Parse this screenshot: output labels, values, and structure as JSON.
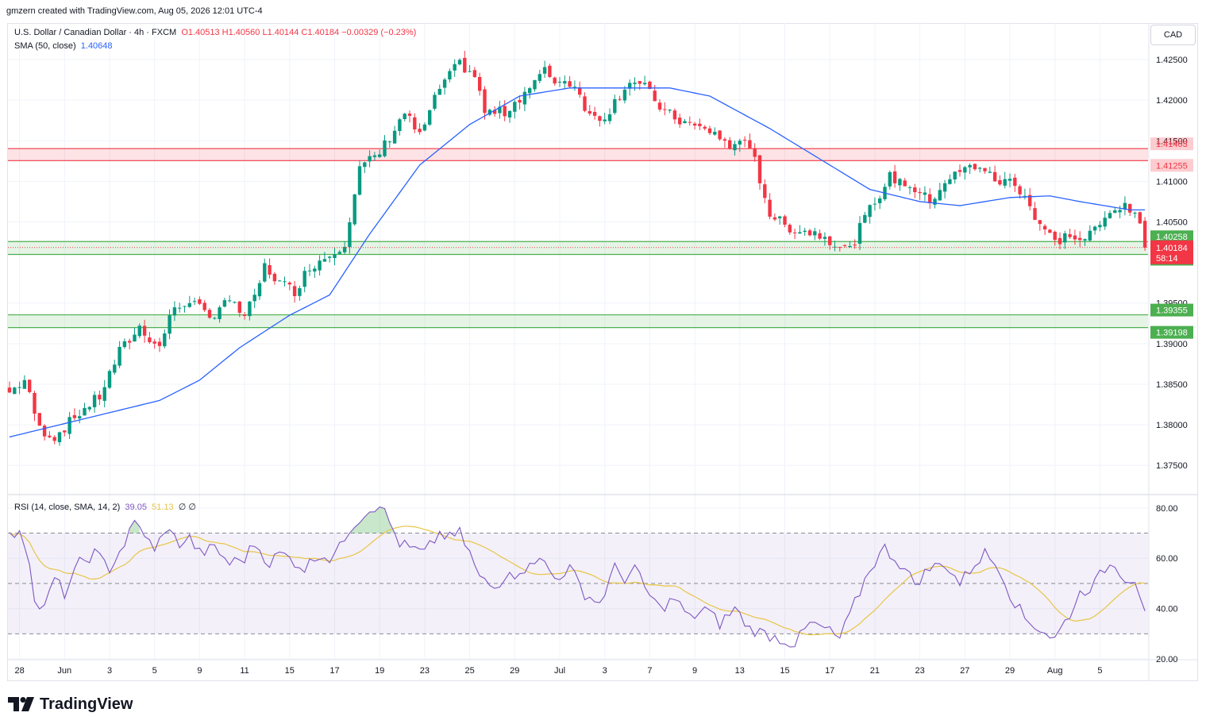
{
  "header": {
    "credit": "gmzern created with TradingView.com, Aug 05, 2026 12:01 UTC-4"
  },
  "legend": {
    "symbol": "U.S. Dollar / Canadian Dollar · 4h · FXCM",
    "ohlc": "O1.40513  H1.40560  L1.40144  C1.40184  −0.00329 (−0.23%)",
    "sma_label": "SMA (50, close)",
    "sma_value": "1.40648",
    "rsi_label": "RSI (14, close, SMA, 14, 2)",
    "rsi_value": "39.05",
    "rsi_ma_value": "51.13",
    "rsi_extra": "∅  ∅"
  },
  "currency_button": "CAD",
  "brand": "TradingView",
  "chart_data": [
    {
      "type": "candlestick",
      "timeframe": "4h",
      "y_ticks": [
        "1.42500",
        "1.42000",
        "1.41500",
        "1.41000",
        "1.40500",
        "1.39500",
        "1.39000",
        "1.38500",
        "1.38000",
        "1.37500"
      ],
      "y_tick_values": [
        1.425,
        1.42,
        1.415,
        1.41,
        1.405,
        1.395,
        1.39,
        1.385,
        1.38,
        1.375
      ],
      "ylim": [
        1.3715,
        1.4295
      ],
      "x_ticks": [
        "28",
        "Jun",
        "3",
        "5",
        "9",
        "11",
        "15",
        "17",
        "19",
        "23",
        "25",
        "29",
        "Jul",
        "3",
        "7",
        "9",
        "13",
        "15",
        "17",
        "21",
        "23",
        "27",
        "29",
        "Aug",
        "5"
      ],
      "x_tick_index": [
        2,
        11,
        20,
        29,
        38,
        47,
        56,
        65,
        74,
        83,
        92,
        101,
        110,
        119,
        128,
        137,
        146,
        155,
        164,
        173,
        182,
        191,
        200,
        209,
        218
      ],
      "num_bars": 224,
      "close_anchors": [
        [
          0,
          1.384
        ],
        [
          3,
          1.3855
        ],
        [
          6,
          1.3795
        ],
        [
          9,
          1.3785
        ],
        [
          14,
          1.3815
        ],
        [
          18,
          1.3835
        ],
        [
          22,
          1.389
        ],
        [
          26,
          1.392
        ],
        [
          30,
          1.3895
        ],
        [
          32,
          1.3935
        ],
        [
          36,
          1.3955
        ],
        [
          40,
          1.393
        ],
        [
          43,
          1.3955
        ],
        [
          47,
          1.3935
        ],
        [
          49,
          1.3955
        ],
        [
          51,
          1.3995
        ],
        [
          54,
          1.3975
        ],
        [
          57,
          1.3965
        ],
        [
          60,
          1.3995
        ],
        [
          64,
          1.401
        ],
        [
          67,
          1.4025
        ],
        [
          70,
          1.4115
        ],
        [
          74,
          1.4135
        ],
        [
          79,
          1.4185
        ],
        [
          82,
          1.4155
        ],
        [
          86,
          1.4215
        ],
        [
          90,
          1.4245
        ],
        [
          93,
          1.423
        ],
        [
          95,
          1.4185
        ],
        [
          99,
          1.4185
        ],
        [
          103,
          1.421
        ],
        [
          107,
          1.4235
        ],
        [
          109,
          1.4225
        ],
        [
          113,
          1.422
        ],
        [
          116,
          1.418
        ],
        [
          119,
          1.418
        ],
        [
          124,
          1.4225
        ],
        [
          127,
          1.4215
        ],
        [
          131,
          1.4185
        ],
        [
          134,
          1.4175
        ],
        [
          138,
          1.4165
        ],
        [
          141,
          1.416
        ],
        [
          144,
          1.414
        ],
        [
          146,
          1.4155
        ],
        [
          149,
          1.4125
        ],
        [
          152,
          1.406
        ],
        [
          155,
          1.4045
        ],
        [
          158,
          1.404
        ],
        [
          162,
          1.4035
        ],
        [
          165,
          1.4025
        ],
        [
          168,
          1.4015
        ],
        [
          171,
          1.4055
        ],
        [
          174,
          1.4085
        ],
        [
          176,
          1.4105
        ],
        [
          180,
          1.4095
        ],
        [
          184,
          1.4075
        ],
        [
          187,
          1.41
        ],
        [
          191,
          1.4115
        ],
        [
          194,
          1.412
        ],
        [
          197,
          1.41
        ],
        [
          200,
          1.41
        ],
        [
          203,
          1.4085
        ],
        [
          205,
          1.4055
        ],
        [
          209,
          1.4025
        ],
        [
          212,
          1.4035
        ],
        [
          214,
          1.4025
        ],
        [
          218,
          1.4045
        ],
        [
          221,
          1.407
        ],
        [
          224,
          1.4065
        ],
        [
          226,
          1.4045
        ],
        [
          227,
          1.40184
        ]
      ],
      "sma_anchors": [
        [
          0,
          1.3785
        ],
        [
          20,
          1.3815
        ],
        [
          30,
          1.383
        ],
        [
          38,
          1.3855
        ],
        [
          46,
          1.3895
        ],
        [
          56,
          1.3935
        ],
        [
          64,
          1.396
        ],
        [
          72,
          1.4035
        ],
        [
          82,
          1.412
        ],
        [
          92,
          1.417
        ],
        [
          102,
          1.4205
        ],
        [
          112,
          1.4215
        ],
        [
          122,
          1.4215
        ],
        [
          132,
          1.4215
        ],
        [
          140,
          1.4205
        ],
        [
          152,
          1.4165
        ],
        [
          160,
          1.4135
        ],
        [
          172,
          1.409
        ],
        [
          182,
          1.4075
        ],
        [
          190,
          1.407
        ],
        [
          200,
          1.408
        ],
        [
          208,
          1.4082
        ],
        [
          214,
          1.4075
        ],
        [
          224,
          1.40648
        ]
      ],
      "sma_label": "SMA (50, close)",
      "last_close": 1.40184,
      "countdown": "58:14",
      "zones": [
        {
          "name": "resistance",
          "from": 1.41255,
          "to": 1.41403,
          "color": "#f23645",
          "labels": [
            "1.41403",
            "1.41255"
          ]
        },
        {
          "name": "support-1",
          "from": 1.40099,
          "to": 1.40258,
          "color": "#4caf50",
          "labels": [
            "1.40258",
            "1.40099"
          ]
        },
        {
          "name": "support-2",
          "from": 1.39198,
          "to": 1.39355,
          "color": "#4caf50",
          "labels": [
            "1.39355",
            "1.39198"
          ]
        }
      ],
      "colors": {
        "up": "#089981",
        "down": "#f23645",
        "sma": "#2962ff",
        "grid": "#f0f3fa"
      }
    },
    {
      "type": "line",
      "name": "RSI (14, close, SMA, 14, 2)",
      "ylim": [
        20,
        85
      ],
      "y_ticks": [
        "80.00",
        "60.00",
        "40.00",
        "20.00"
      ],
      "y_tick_values": [
        80,
        60,
        40,
        20
      ],
      "bands": {
        "upper": 70,
        "middle": 50,
        "lower": 30
      },
      "rsi_anchors": [
        [
          0,
          68
        ],
        [
          2,
          72
        ],
        [
          4,
          60
        ],
        [
          5,
          42
        ],
        [
          7,
          40
        ],
        [
          9,
          52
        ],
        [
          11,
          46
        ],
        [
          14,
          58
        ],
        [
          17,
          62
        ],
        [
          20,
          56
        ],
        [
          23,
          66
        ],
        [
          25,
          74
        ],
        [
          27,
          70
        ],
        [
          29,
          62
        ],
        [
          31,
          72
        ],
        [
          34,
          66
        ],
        [
          36,
          68
        ],
        [
          38,
          62
        ],
        [
          41,
          64
        ],
        [
          44,
          58
        ],
        [
          47,
          60
        ],
        [
          49,
          66
        ],
        [
          52,
          58
        ],
        [
          54,
          62
        ],
        [
          56,
          60
        ],
        [
          59,
          56
        ],
        [
          62,
          62
        ],
        [
          64,
          60
        ],
        [
          66,
          64
        ],
        [
          68,
          72
        ],
        [
          71,
          78
        ],
        [
          74,
          82
        ],
        [
          76,
          74
        ],
        [
          78,
          66
        ],
        [
          80,
          64
        ],
        [
          83,
          62
        ],
        [
          86,
          70
        ],
        [
          88,
          68
        ],
        [
          90,
          70
        ],
        [
          92,
          62
        ],
        [
          94,
          52
        ],
        [
          97,
          48
        ],
        [
          100,
          56
        ],
        [
          102,
          52
        ],
        [
          104,
          60
        ],
        [
          107,
          58
        ],
        [
          109,
          52
        ],
        [
          112,
          56
        ],
        [
          115,
          46
        ],
        [
          118,
          42
        ],
        [
          121,
          56
        ],
        [
          123,
          52
        ],
        [
          125,
          56
        ],
        [
          127,
          48
        ],
        [
          130,
          40
        ],
        [
          133,
          44
        ],
        [
          136,
          36
        ],
        [
          139,
          40
        ],
        [
          142,
          34
        ],
        [
          145,
          40
        ],
        [
          148,
          32
        ],
        [
          151,
          30
        ],
        [
          154,
          28
        ],
        [
          157,
          26
        ],
        [
          160,
          34
        ],
        [
          163,
          32
        ],
        [
          166,
          28
        ],
        [
          169,
          42
        ],
        [
          172,
          56
        ],
        [
          175,
          64
        ],
        [
          178,
          58
        ],
        [
          181,
          50
        ],
        [
          184,
          56
        ],
        [
          187,
          58
        ],
        [
          190,
          50
        ],
        [
          193,
          58
        ],
        [
          195,
          62
        ],
        [
          198,
          56
        ],
        [
          200,
          46
        ],
        [
          203,
          36
        ],
        [
          206,
          32
        ],
        [
          209,
          28
        ],
        [
          212,
          38
        ],
        [
          214,
          46
        ],
        [
          217,
          50
        ],
        [
          219,
          56
        ],
        [
          221,
          58
        ],
        [
          223,
          52
        ],
        [
          225,
          52
        ],
        [
          226,
          46
        ],
        [
          227,
          39.05
        ]
      ],
      "rsi_value": 39.05,
      "rsi_ma_value": 51.13,
      "colors": {
        "rsi": "#7e57c2",
        "ma": "#e8c547",
        "band": "#7e57c2"
      }
    }
  ]
}
